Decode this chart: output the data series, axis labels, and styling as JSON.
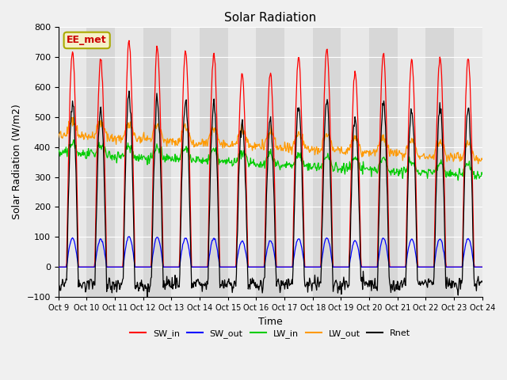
{
  "title": "Solar Radiation",
  "xlabel": "Time",
  "ylabel": "Solar Radiation (W/m2)",
  "ylim": [
    -100,
    800
  ],
  "n_days": 15,
  "annotation": "EE_met",
  "x_tick_labels": [
    "Oct 9",
    "Oct 10",
    "Oct 11",
    "Oct 12",
    "Oct 13",
    "Oct 14",
    "Oct 15",
    "Oct 16",
    "Oct 17",
    "Oct 18",
    "Oct 19",
    "Oct 20",
    "Oct 21",
    "Oct 22",
    "Oct 23",
    "Oct 24"
  ],
  "series_colors": {
    "SW_in": "#ff0000",
    "SW_out": "#0000ff",
    "LW_in": "#00cc00",
    "LW_out": "#ff9900",
    "Rnet": "#000000"
  },
  "legend_entries": [
    "SW_in",
    "SW_out",
    "LW_in",
    "LW_out",
    "Rnet"
  ],
  "plot_bg_light": "#e8e8e8",
  "plot_bg_dark": "#d0d0d0",
  "fig_bg": "#f0f0f0",
  "grid_color": "#ffffff",
  "annotation_facecolor": "#f5f0c8",
  "annotation_edgecolor": "#aaaa00",
  "annotation_textcolor": "#cc0000"
}
